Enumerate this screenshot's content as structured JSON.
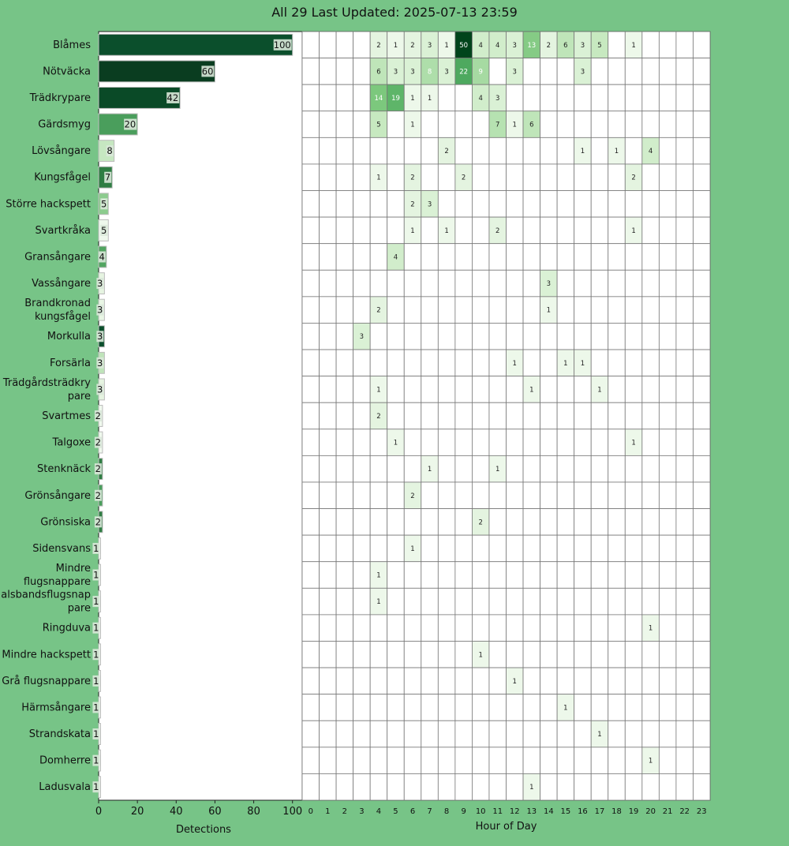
{
  "title": "All 29 Last Updated: 2025-07-13 23:59",
  "chart_data": [
    {
      "type": "bar",
      "orientation": "horizontal",
      "xlabel": "Detections",
      "ylabel": "",
      "xlim": [
        0,
        105
      ],
      "xticks": [
        0,
        20,
        40,
        60,
        80,
        100
      ],
      "categories": [
        "Blåmes",
        "Nötväcka",
        "Trädkrypare",
        "Gärdsmyg",
        "Lövsångare",
        "Kungsfågel",
        "Större hackspett",
        "Svartkråka",
        "Gransångare",
        "Vassångare",
        "Brandkronad kungsfågel",
        "Morkulla",
        "Forsärla",
        "Trädgårdsträdkrypare",
        "Svartmes",
        "Talgoxe",
        "Stenknäck",
        "Grönsångare",
        "Grönsiska",
        "Sidensvans",
        "Mindre flugsnappare",
        "Halsbandsflugsnappare",
        "Ringduva",
        "Mindre hackspett",
        "Grå flugsnappare",
        "Härmsångare",
        "Strandskata",
        "Domherre",
        "Ladusvala"
      ],
      "category_lines": [
        [
          "Blåmes"
        ],
        [
          "Nötväcka"
        ],
        [
          "Trädkrypare"
        ],
        [
          "Gärdsmyg"
        ],
        [
          "Lövsångare"
        ],
        [
          "Kungsfågel"
        ],
        [
          "Större hackspett"
        ],
        [
          "Svartkråka"
        ],
        [
          "Gransångare"
        ],
        [
          "Vassångare"
        ],
        [
          "Brandkronad",
          "kungsfågel"
        ],
        [
          "Morkulla"
        ],
        [
          "Forsärla"
        ],
        [
          "Trädgårdsträdkry",
          "pare"
        ],
        [
          "Svartmes"
        ],
        [
          "Talgoxe"
        ],
        [
          "Stenknäck"
        ],
        [
          "Grönsångare"
        ],
        [
          "Grönsiska"
        ],
        [
          "Sidensvans"
        ],
        [
          "Mindre",
          "flugsnappare"
        ],
        [
          "Halsbandsflugsnap",
          "pare"
        ],
        [
          "Ringduva"
        ],
        [
          "Mindre hackspett"
        ],
        [
          "Grå flugsnappare"
        ],
        [
          "Härmsångare"
        ],
        [
          "Strandskata"
        ],
        [
          "Domherre"
        ],
        [
          "Ladusvala"
        ]
      ],
      "values": [
        100,
        60,
        42,
        20,
        8,
        7,
        5,
        5,
        4,
        3,
        3,
        3,
        3,
        3,
        2,
        2,
        2,
        2,
        2,
        1,
        1,
        1,
        1,
        1,
        1,
        1,
        1,
        1,
        1
      ],
      "bar_colors": [
        "#0b4f2c",
        "#0a3d20",
        "#0a4a27",
        "#4a9e5c",
        "#c6e7c1",
        "#2f7d43",
        "#8ccc8e",
        "#eef8ec",
        "#52a561",
        "#e6f4e1",
        "#e9f6e5",
        "#0b4f2c",
        "#bfe4ba",
        "#e6f4e1",
        "#f0f9ee",
        "#f0f9ee",
        "#2f7d43",
        "#4a9e5c",
        "#2f7d43",
        "#f2faf0",
        "#f2faf0",
        "#f2faf0",
        "#f2faf0",
        "#f2faf0",
        "#f2faf0",
        "#f2faf0",
        "#f2faf0",
        "#f2faf0",
        "#f2faf0"
      ]
    },
    {
      "type": "heatmap",
      "xlabel": "Hour of Day",
      "x": [
        "0",
        "1",
        "2",
        "3",
        "4",
        "5",
        "6",
        "7",
        "8",
        "9",
        "10",
        "11",
        "12",
        "13",
        "14",
        "15",
        "16",
        "17",
        "18",
        "19",
        "20",
        "21",
        "22",
        "23"
      ],
      "highlight_hour": "23",
      "highlight_color": "#ffff66",
      "y": [
        "Blåmes",
        "Nötväcka",
        "Trädkrypare",
        "Gärdsmyg",
        "Lövsångare",
        "Kungsfågel",
        "Större hackspett",
        "Svartkråka",
        "Gransångare",
        "Vassångare",
        "Brandkronad kungsfågel",
        "Morkulla",
        "Forsärla",
        "Trädgårdsträdkrypare",
        "Svartmes",
        "Talgoxe",
        "Stenknäck",
        "Grönsångare",
        "Grönsiska",
        "Sidensvans",
        "Mindre flugsnappare",
        "Halsbandsflugsnappare",
        "Ringduva",
        "Mindre hackspett",
        "Grå flugsnappare",
        "Härmsångare",
        "Strandskata",
        "Domherre",
        "Ladusvala"
      ],
      "values": [
        [
          0,
          0,
          0,
          0,
          2,
          1,
          2,
          3,
          1,
          50,
          4,
          4,
          3,
          13,
          2,
          6,
          3,
          5,
          0,
          1,
          0,
          0,
          0,
          0
        ],
        [
          0,
          0,
          0,
          0,
          6,
          3,
          3,
          8,
          3,
          22,
          9,
          0,
          3,
          0,
          0,
          0,
          3,
          0,
          0,
          0,
          0,
          0,
          0,
          0
        ],
        [
          0,
          0,
          0,
          0,
          14,
          19,
          1,
          1,
          0,
          0,
          4,
          3,
          0,
          0,
          0,
          0,
          0,
          0,
          0,
          0,
          0,
          0,
          0,
          0
        ],
        [
          0,
          0,
          0,
          0,
          5,
          0,
          1,
          0,
          0,
          0,
          0,
          7,
          1,
          6,
          0,
          0,
          0,
          0,
          0,
          0,
          0,
          0,
          0,
          0
        ],
        [
          0,
          0,
          0,
          0,
          0,
          0,
          0,
          0,
          2,
          0,
          0,
          0,
          0,
          0,
          0,
          0,
          1,
          0,
          1,
          0,
          4,
          0,
          0,
          0
        ],
        [
          0,
          0,
          0,
          0,
          1,
          0,
          2,
          0,
          0,
          2,
          0,
          0,
          0,
          0,
          0,
          0,
          0,
          0,
          0,
          2,
          0,
          0,
          0,
          0
        ],
        [
          0,
          0,
          0,
          0,
          0,
          0,
          2,
          3,
          0,
          0,
          0,
          0,
          0,
          0,
          0,
          0,
          0,
          0,
          0,
          0,
          0,
          0,
          0,
          0
        ],
        [
          0,
          0,
          0,
          0,
          0,
          0,
          1,
          0,
          1,
          0,
          0,
          2,
          0,
          0,
          0,
          0,
          0,
          0,
          0,
          1,
          0,
          0,
          0,
          0
        ],
        [
          0,
          0,
          0,
          0,
          0,
          4,
          0,
          0,
          0,
          0,
          0,
          0,
          0,
          0,
          0,
          0,
          0,
          0,
          0,
          0,
          0,
          0,
          0,
          0
        ],
        [
          0,
          0,
          0,
          0,
          0,
          0,
          0,
          0,
          0,
          0,
          0,
          0,
          0,
          0,
          3,
          0,
          0,
          0,
          0,
          0,
          0,
          0,
          0,
          0
        ],
        [
          0,
          0,
          0,
          0,
          2,
          0,
          0,
          0,
          0,
          0,
          0,
          0,
          0,
          0,
          1,
          0,
          0,
          0,
          0,
          0,
          0,
          0,
          0,
          0
        ],
        [
          0,
          0,
          0,
          3,
          0,
          0,
          0,
          0,
          0,
          0,
          0,
          0,
          0,
          0,
          0,
          0,
          0,
          0,
          0,
          0,
          0,
          0,
          0,
          0
        ],
        [
          0,
          0,
          0,
          0,
          0,
          0,
          0,
          0,
          0,
          0,
          0,
          0,
          1,
          0,
          0,
          1,
          1,
          0,
          0,
          0,
          0,
          0,
          0,
          0
        ],
        [
          0,
          0,
          0,
          0,
          1,
          0,
          0,
          0,
          0,
          0,
          0,
          0,
          0,
          1,
          0,
          0,
          0,
          1,
          0,
          0,
          0,
          0,
          0,
          0
        ],
        [
          0,
          0,
          0,
          0,
          2,
          0,
          0,
          0,
          0,
          0,
          0,
          0,
          0,
          0,
          0,
          0,
          0,
          0,
          0,
          0,
          0,
          0,
          0,
          0
        ],
        [
          0,
          0,
          0,
          0,
          0,
          1,
          0,
          0,
          0,
          0,
          0,
          0,
          0,
          0,
          0,
          0,
          0,
          0,
          0,
          1,
          0,
          0,
          0,
          0
        ],
        [
          0,
          0,
          0,
          0,
          0,
          0,
          0,
          1,
          0,
          0,
          0,
          1,
          0,
          0,
          0,
          0,
          0,
          0,
          0,
          0,
          0,
          0,
          0,
          0
        ],
        [
          0,
          0,
          0,
          0,
          0,
          0,
          2,
          0,
          0,
          0,
          0,
          0,
          0,
          0,
          0,
          0,
          0,
          0,
          0,
          0,
          0,
          0,
          0,
          0
        ],
        [
          0,
          0,
          0,
          0,
          0,
          0,
          0,
          0,
          0,
          0,
          2,
          0,
          0,
          0,
          0,
          0,
          0,
          0,
          0,
          0,
          0,
          0,
          0,
          0
        ],
        [
          0,
          0,
          0,
          0,
          0,
          0,
          1,
          0,
          0,
          0,
          0,
          0,
          0,
          0,
          0,
          0,
          0,
          0,
          0,
          0,
          0,
          0,
          0,
          0
        ],
        [
          0,
          0,
          0,
          0,
          1,
          0,
          0,
          0,
          0,
          0,
          0,
          0,
          0,
          0,
          0,
          0,
          0,
          0,
          0,
          0,
          0,
          0,
          0,
          0
        ],
        [
          0,
          0,
          0,
          0,
          1,
          0,
          0,
          0,
          0,
          0,
          0,
          0,
          0,
          0,
          0,
          0,
          0,
          0,
          0,
          0,
          0,
          0,
          0,
          0
        ],
        [
          0,
          0,
          0,
          0,
          0,
          0,
          0,
          0,
          0,
          0,
          0,
          0,
          0,
          0,
          0,
          0,
          0,
          0,
          0,
          0,
          1,
          0,
          0,
          0
        ],
        [
          0,
          0,
          0,
          0,
          0,
          0,
          0,
          0,
          0,
          0,
          1,
          0,
          0,
          0,
          0,
          0,
          0,
          0,
          0,
          0,
          0,
          0,
          0,
          0
        ],
        [
          0,
          0,
          0,
          0,
          0,
          0,
          0,
          0,
          0,
          0,
          0,
          0,
          1,
          0,
          0,
          0,
          0,
          0,
          0,
          0,
          0,
          0,
          0,
          0
        ],
        [
          0,
          0,
          0,
          0,
          0,
          0,
          0,
          0,
          0,
          0,
          0,
          0,
          0,
          0,
          0,
          1,
          0,
          0,
          0,
          0,
          0,
          0,
          0,
          0
        ],
        [
          0,
          0,
          0,
          0,
          0,
          0,
          0,
          0,
          0,
          0,
          0,
          0,
          0,
          0,
          0,
          0,
          0,
          1,
          0,
          0,
          0,
          0,
          0,
          0
        ],
        [
          0,
          0,
          0,
          0,
          0,
          0,
          0,
          0,
          0,
          0,
          0,
          0,
          0,
          0,
          0,
          0,
          0,
          0,
          0,
          0,
          1,
          0,
          0,
          0
        ],
        [
          0,
          0,
          0,
          0,
          0,
          0,
          0,
          0,
          0,
          0,
          0,
          0,
          0,
          1,
          0,
          0,
          0,
          0,
          0,
          0,
          0,
          0,
          0,
          0
        ]
      ]
    }
  ]
}
